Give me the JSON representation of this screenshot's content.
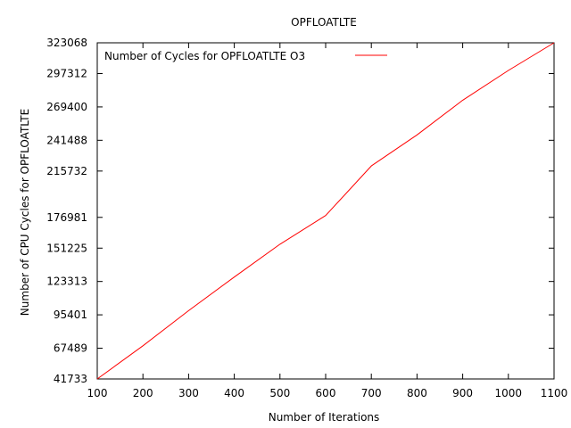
{
  "chart_data": {
    "type": "line",
    "title": "OPFLOATLTE",
    "xlabel": "Number of Iterations",
    "ylabel": "Number of CPU Cycles for OPFLOATLTE",
    "xlim": [
      100,
      1100
    ],
    "ylim": [
      41733,
      323068
    ],
    "xticks": [
      100,
      200,
      300,
      400,
      500,
      600,
      700,
      800,
      900,
      1000,
      1100
    ],
    "yticks": [
      41733,
      67489,
      95401,
      123313,
      151225,
      176981,
      215732,
      241488,
      269400,
      297312,
      323068
    ],
    "grid": false,
    "legend_position": "top-left",
    "series": [
      {
        "name": "Number of Cycles for OPFLOATLTE O3",
        "color": "#ff0000",
        "x": [
          100,
          200,
          300,
          400,
          500,
          600,
          700,
          800,
          900,
          1000,
          1100
        ],
        "y": [
          41733,
          69500,
          98900,
          127000,
          154500,
          178500,
          220000,
          246000,
          275000,
          299900,
          323068
        ]
      }
    ]
  }
}
